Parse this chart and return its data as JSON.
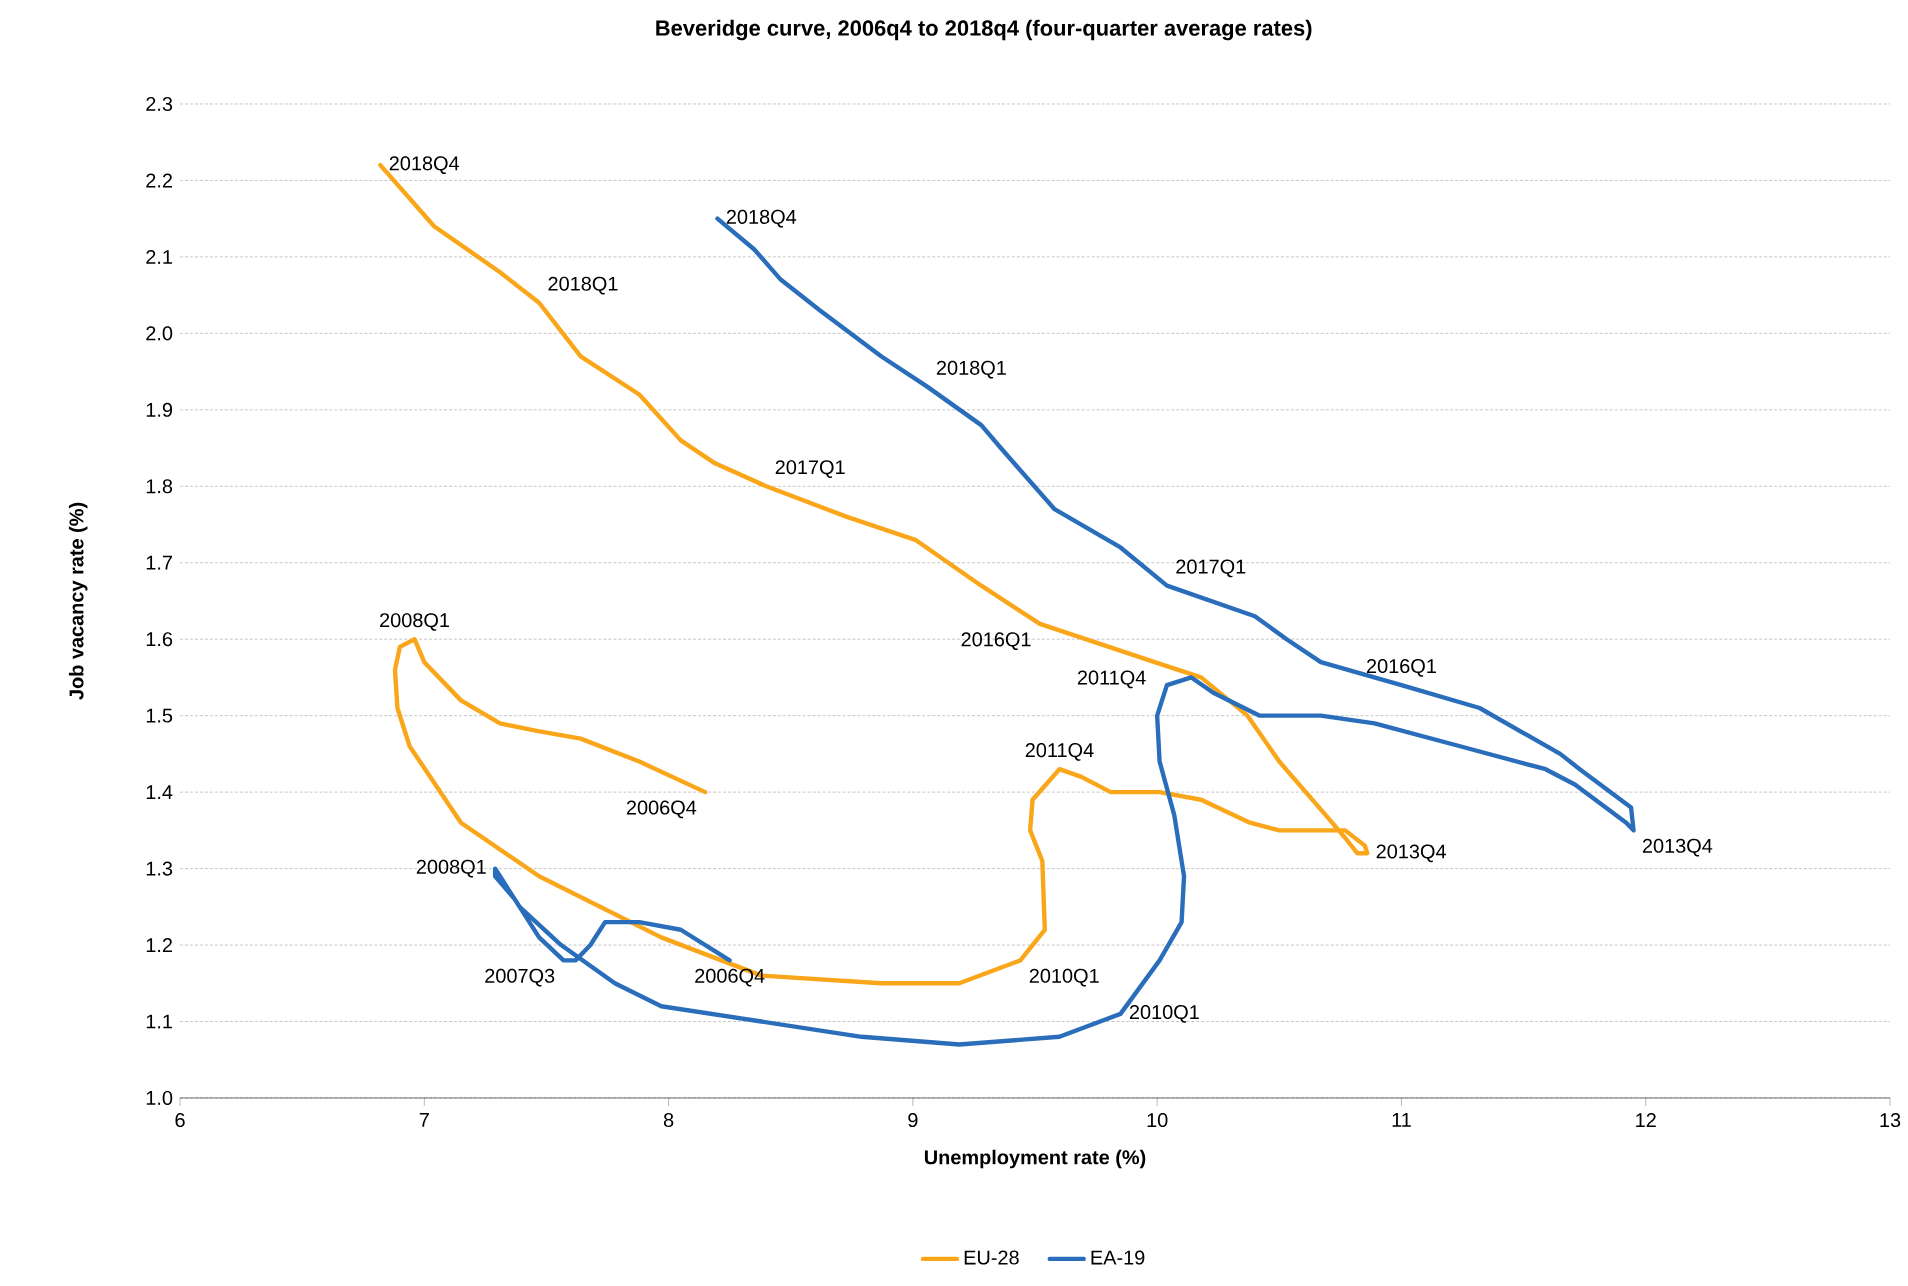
{
  "chart_data": {
    "type": "line",
    "title": "Beveridge  curve, 2006q4 to 2018q4 (four-quarter average rates)",
    "xlabel": "Unemployment rate (%)",
    "ylabel": "Job vacancy rate (%)",
    "xlim": [
      6,
      13
    ],
    "xticks": [
      6,
      7,
      8,
      9,
      10,
      11,
      12,
      13
    ],
    "ylim": [
      1.0,
      2.3
    ],
    "yticks": [
      {
        "value": 1.0,
        "label": "1.0"
      },
      {
        "value": 1.1,
        "label": "1.1"
      },
      {
        "value": 1.2,
        "label": "1.2"
      },
      {
        "value": 1.3,
        "label": "1.3"
      },
      {
        "value": 1.4,
        "label": "1.4"
      },
      {
        "value": 1.5,
        "label": "1.5"
      },
      {
        "value": 1.6,
        "label": "1.6"
      },
      {
        "value": 1.7,
        "label": "1.7"
      },
      {
        "value": 1.8,
        "label": "1.8"
      },
      {
        "value": 1.9,
        "label": "1.9"
      },
      {
        "value": 2.0,
        "label": "2.0"
      },
      {
        "value": 2.1,
        "label": "2.1"
      },
      {
        "value": 2.2,
        "label": "2.2"
      },
      {
        "value": 2.3,
        "label": "2.3"
      }
    ],
    "grid": "y",
    "legend": "bottom",
    "series": [
      {
        "name": "EU-28",
        "color": "#faa61a",
        "x": [
          8.15,
          7.88,
          7.64,
          7.46,
          7.31,
          7.15,
          7.0,
          6.96,
          6.9,
          6.88,
          6.89,
          6.94,
          7.15,
          7.47,
          7.97,
          8.38,
          8.87,
          9.19,
          9.44,
          9.54,
          9.53,
          9.48,
          9.49,
          9.6,
          9.69,
          9.81,
          10.01,
          10.18,
          10.38,
          10.5,
          10.67,
          10.77,
          10.85,
          10.86,
          10.82,
          10.77,
          10.69,
          10.5,
          10.37,
          10.18,
          9.99,
          9.52,
          9.28,
          9.01,
          8.73,
          8.4,
          8.19,
          8.05,
          7.88,
          7.64,
          7.47,
          7.31,
          7.04,
          6.82
        ],
        "values": [
          1.4,
          1.44,
          1.47,
          1.48,
          1.49,
          1.52,
          1.57,
          1.6,
          1.59,
          1.56,
          1.51,
          1.46,
          1.36,
          1.29,
          1.21,
          1.16,
          1.15,
          1.15,
          1.18,
          1.22,
          1.31,
          1.35,
          1.39,
          1.43,
          1.42,
          1.4,
          1.4,
          1.39,
          1.36,
          1.35,
          1.35,
          1.35,
          1.33,
          1.32,
          1.32,
          1.34,
          1.37,
          1.44,
          1.5,
          1.55,
          1.57,
          1.62,
          1.67,
          1.73,
          1.76,
          1.8,
          1.83,
          1.86,
          1.92,
          1.97,
          2.04,
          2.08,
          2.14,
          2.22
        ]
      },
      {
        "name": "EA-19",
        "color": "#2a6ebb",
        "x": [
          8.25,
          8.05,
          7.88,
          7.74,
          7.68,
          7.62,
          7.57,
          7.47,
          7.37,
          7.29,
          7.29,
          7.31,
          7.39,
          7.56,
          7.78,
          7.97,
          8.38,
          8.79,
          9.19,
          9.6,
          9.85,
          10.01,
          10.1,
          10.11,
          10.07,
          10.01,
          10.0,
          10.04,
          10.14,
          10.23,
          10.42,
          10.67,
          10.89,
          11.24,
          11.59,
          11.71,
          11.92,
          11.95,
          11.94,
          11.73,
          11.65,
          11.32,
          11.0,
          10.67,
          10.53,
          10.4,
          10.04,
          9.85,
          9.58,
          9.36,
          9.28,
          9.06,
          8.87,
          8.62,
          8.46,
          8.35,
          8.2
        ],
        "values": [
          1.18,
          1.22,
          1.23,
          1.23,
          1.2,
          1.18,
          1.18,
          1.21,
          1.26,
          1.29,
          1.3,
          1.29,
          1.25,
          1.2,
          1.15,
          1.12,
          1.1,
          1.08,
          1.07,
          1.08,
          1.11,
          1.18,
          1.23,
          1.29,
          1.37,
          1.44,
          1.5,
          1.54,
          1.55,
          1.53,
          1.5,
          1.5,
          1.49,
          1.46,
          1.43,
          1.41,
          1.36,
          1.35,
          1.38,
          1.43,
          1.45,
          1.51,
          1.54,
          1.57,
          1.6,
          1.63,
          1.67,
          1.72,
          1.77,
          1.85,
          1.88,
          1.93,
          1.97,
          2.03,
          2.07,
          2.11,
          2.15
        ]
      }
    ],
    "annotations": [
      {
        "text": "2018Q4",
        "x": 6.82,
        "y": 2.22
      },
      {
        "text": "2018Q1",
        "x": 7.47,
        "y": 2.04
      },
      {
        "text": "2017Q1",
        "x": 8.4,
        "y": 1.8
      },
      {
        "text": "2016Q1",
        "x": 9.52,
        "y": 1.62
      },
      {
        "text": "2011Q4",
        "x": 9.99,
        "y": 1.57
      },
      {
        "text": "2011Q4",
        "x": 9.6,
        "y": 1.43
      },
      {
        "text": "2013Q4",
        "x": 10.86,
        "y": 1.32
      },
      {
        "text": "2010Q1",
        "x": 9.44,
        "y": 1.18
      },
      {
        "text": "2006Q4",
        "x": 8.15,
        "y": 1.4
      },
      {
        "text": "2008Q1",
        "x": 6.96,
        "y": 1.6
      },
      {
        "text": "2018Q4",
        "x": 8.2,
        "y": 2.15
      },
      {
        "text": "2018Q1",
        "x": 9.06,
        "y": 1.93
      },
      {
        "text": "2017Q1",
        "x": 10.04,
        "y": 1.67
      },
      {
        "text": "2016Q1",
        "x": 11.0,
        "y": 1.54
      },
      {
        "text": "2013Q4",
        "x": 11.95,
        "y": 1.35
      },
      {
        "text": "2010Q1",
        "x": 9.85,
        "y": 1.11
      },
      {
        "text": "2006Q4",
        "x": 8.25,
        "y": 1.18
      },
      {
        "text": "2007Q3",
        "x": 7.57,
        "y": 1.18
      },
      {
        "text": "2008Q1",
        "x": 7.29,
        "y": 1.3
      }
    ]
  }
}
